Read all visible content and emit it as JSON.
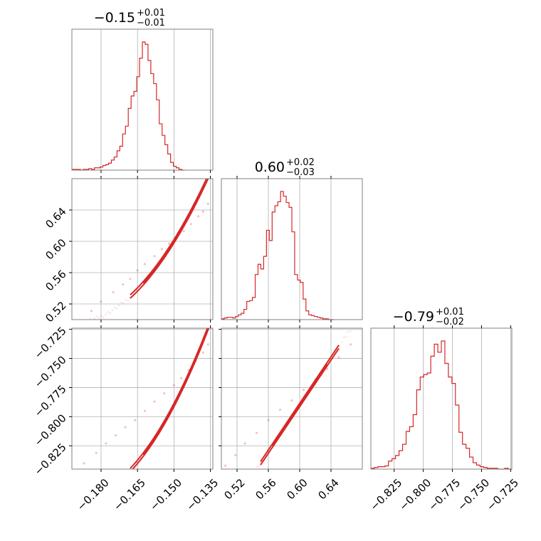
{
  "chart_data": {
    "type": "corner",
    "color": "#d62728",
    "grid": true,
    "parameters": [
      {
        "id": "p0",
        "range": [
          -0.192,
          -0.134
        ],
        "ticks": [
          -0.18,
          -0.165,
          -0.15,
          -0.135
        ],
        "tick_labels": [
          "−0.180",
          "−0.165",
          "−0.150",
          "−0.135"
        ]
      },
      {
        "id": "p1",
        "range": [
          0.5,
          0.68
        ],
        "ticks": [
          0.52,
          0.56,
          0.6,
          0.64
        ],
        "tick_labels": [
          "0.52",
          "0.56",
          "0.60",
          "0.64"
        ]
      },
      {
        "id": "p2",
        "range": [
          -0.845,
          -0.724
        ],
        "ticks": [
          -0.825,
          -0.8,
          -0.775,
          -0.75,
          -0.725
        ],
        "tick_labels": [
          "−0.825",
          "−0.800",
          "−0.775",
          "−0.750",
          "−0.725"
        ]
      }
    ],
    "titles": [
      {
        "value": "−0.15",
        "plus": "+0.01",
        "minus": "−0.01"
      },
      {
        "value": "0.60",
        "plus": "+0.02",
        "minus": "−0.03"
      },
      {
        "value": "−0.79",
        "plus": "+0.01",
        "minus": "−0.02"
      }
    ],
    "histograms": [
      {
        "param": "p0",
        "bin_start": -0.192,
        "bin_width": 0.00116,
        "counts": [
          1,
          1,
          1,
          0,
          1,
          1,
          2,
          1,
          3,
          3,
          4,
          6,
          7,
          9,
          13,
          17,
          25,
          31,
          47,
          57,
          80,
          96,
          102,
          121,
          145,
          166,
          163,
          142,
          125,
          112,
          91,
          60,
          45,
          33,
          21,
          10,
          5,
          3,
          1,
          0
        ]
      },
      {
        "param": "p1",
        "bin_start": 0.5,
        "bin_width": 0.0036,
        "counts": [
          1,
          2,
          3,
          3,
          2,
          4,
          6,
          8,
          13,
          23,
          24,
          28,
          57,
          70,
          64,
          80,
          113,
          100,
          136,
          144,
          149,
          162,
          156,
          148,
          142,
          111,
          57,
          50,
          47,
          26,
          11,
          6,
          5,
          4,
          3,
          2,
          1,
          1,
          0,
          0
        ]
      },
      {
        "param": "p2",
        "bin_start": -0.845,
        "bin_width": 0.003025,
        "counts": [
          1,
          2,
          3,
          3,
          4,
          10,
          13,
          17,
          23,
          31,
          47,
          53,
          68,
          99,
          115,
          118,
          120,
          141,
          156,
          146,
          160,
          132,
          115,
          107,
          80,
          46,
          31,
          26,
          15,
          8,
          5,
          3,
          2,
          1,
          1,
          1,
          0,
          0,
          1,
          0
        ]
      }
    ],
    "pairs": [
      {
        "x": "p0",
        "y": "p1",
        "relation": "y = 0.60 + 5.0*(x + 0.15) + 60*(x + 0.15)^2",
        "points": [
          [
            -0.184,
            0.511
          ],
          [
            -0.18,
            0.523
          ],
          [
            -0.175,
            0.535
          ],
          [
            -0.171,
            0.545
          ],
          [
            -0.168,
            0.552
          ],
          [
            -0.165,
            0.563
          ],
          [
            -0.162,
            0.571
          ],
          [
            -0.158,
            0.581
          ],
          [
            -0.155,
            0.59
          ],
          [
            -0.152,
            0.597
          ],
          [
            -0.149,
            0.605
          ],
          [
            -0.146,
            0.613
          ],
          [
            -0.143,
            0.622
          ],
          [
            -0.14,
            0.632
          ],
          [
            -0.138,
            0.638
          ],
          [
            -0.136,
            0.648
          ]
        ]
      },
      {
        "x": "p0",
        "y": "p2",
        "relation": "y = -0.79 + 4.0*(x + 0.15) + 50*(x + 0.15)^2",
        "points": [
          [
            -0.187,
            -0.84
          ],
          [
            -0.182,
            -0.831
          ],
          [
            -0.178,
            -0.823
          ],
          [
            -0.174,
            -0.816
          ],
          [
            -0.17,
            -0.809
          ],
          [
            -0.166,
            -0.803
          ],
          [
            -0.162,
            -0.795
          ],
          [
            -0.158,
            -0.787
          ],
          [
            -0.154,
            -0.78
          ],
          [
            -0.15,
            -0.773
          ],
          [
            -0.147,
            -0.767
          ],
          [
            -0.144,
            -0.76
          ],
          [
            -0.141,
            -0.752
          ],
          [
            -0.138,
            -0.745
          ],
          [
            -0.136,
            -0.738
          ]
        ]
      },
      {
        "x": "p1",
        "y": "p2",
        "relation": "y = -0.79 + 1.0*(x - 0.60)",
        "points": [
          [
            0.505,
            -0.842
          ],
          [
            0.518,
            -0.833
          ],
          [
            0.53,
            -0.823
          ],
          [
            0.545,
            -0.814
          ],
          [
            0.56,
            -0.803
          ],
          [
            0.575,
            -0.794
          ],
          [
            0.59,
            -0.786
          ],
          [
            0.605,
            -0.777
          ],
          [
            0.62,
            -0.768
          ],
          [
            0.635,
            -0.759
          ],
          [
            0.65,
            -0.749
          ],
          [
            0.665,
            -0.738
          ]
        ]
      }
    ]
  }
}
